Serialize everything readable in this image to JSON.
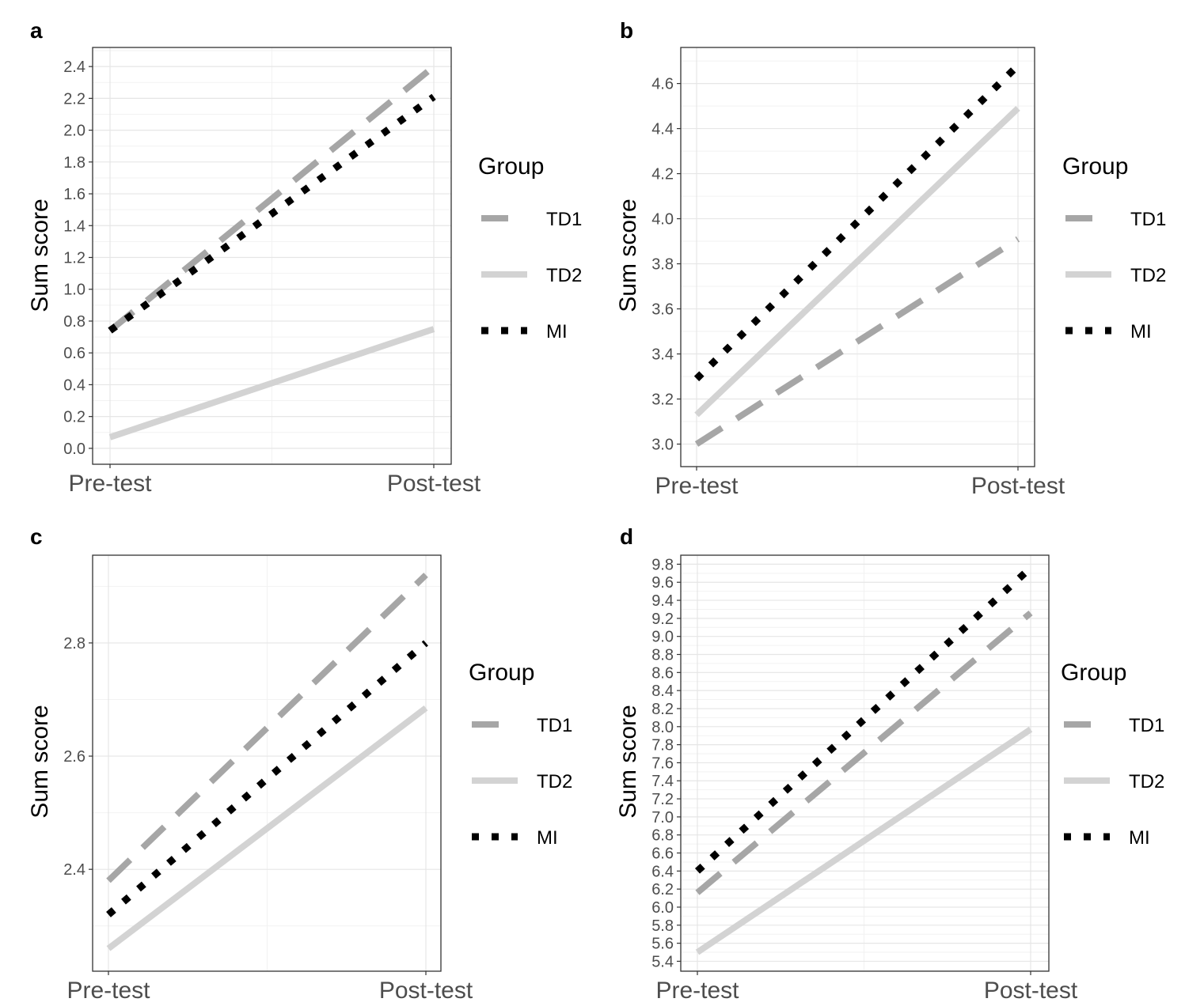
{
  "chart_data": [
    {
      "panel": "a",
      "type": "line",
      "title": "",
      "xlabel": "",
      "ylabel": "Sum score",
      "categories": [
        "Pre-test",
        "Post-test"
      ],
      "ylim": [
        -0.1,
        2.52
      ],
      "yticks": [
        0.0,
        0.2,
        0.4,
        0.6,
        0.8,
        1.0,
        1.2,
        1.4,
        1.6,
        1.8,
        2.0,
        2.2,
        2.4
      ],
      "ytick_labels": [
        "0.0",
        "0.2",
        "0.4",
        "0.6",
        "0.8",
        "1.0",
        "1.2",
        "1.4",
        "1.6",
        "1.8",
        "2.0",
        "2.2",
        "2.4"
      ],
      "grid": true,
      "legend": {
        "title": "Group",
        "position": "right"
      },
      "series": [
        {
          "name": "TD1",
          "values": [
            0.74,
            2.4
          ],
          "style": "dashed",
          "color": "#a6a6a6"
        },
        {
          "name": "TD2",
          "values": [
            0.07,
            0.75
          ],
          "style": "solid",
          "color": "#d3d3d3"
        },
        {
          "name": "MI",
          "values": [
            0.74,
            2.21
          ],
          "style": "dotted",
          "color": "#000000"
        }
      ]
    },
    {
      "panel": "b",
      "type": "line",
      "title": "",
      "xlabel": "",
      "ylabel": "Sum score",
      "categories": [
        "Pre-test",
        "Post-test"
      ],
      "ylim": [
        2.9,
        4.76
      ],
      "yticks": [
        3.0,
        3.2,
        3.4,
        3.6,
        3.8,
        4.0,
        4.2,
        4.4,
        4.6
      ],
      "ytick_labels": [
        "3.0",
        "3.2",
        "3.4",
        "3.6",
        "3.8",
        "4.0",
        "4.2",
        "4.4",
        "4.6"
      ],
      "grid": true,
      "legend": {
        "title": "Group",
        "position": "right"
      },
      "series": [
        {
          "name": "TD1",
          "values": [
            3.0,
            3.91
          ],
          "style": "dashed",
          "color": "#a6a6a6"
        },
        {
          "name": "TD2",
          "values": [
            3.13,
            4.49
          ],
          "style": "solid",
          "color": "#d3d3d3"
        },
        {
          "name": "MI",
          "values": [
            3.29,
            4.68
          ],
          "style": "dotted",
          "color": "#000000"
        }
      ]
    },
    {
      "panel": "c",
      "type": "line",
      "title": "",
      "xlabel": "",
      "ylabel": "Sum score",
      "categories": [
        "Pre-test",
        "Post-test"
      ],
      "ylim": [
        2.22,
        2.955
      ],
      "yticks": [
        2.4,
        2.6,
        2.8
      ],
      "ytick_labels": [
        "2.4",
        "2.6",
        "2.8"
      ],
      "grid": true,
      "legend": {
        "title": "Group",
        "position": "right"
      },
      "series": [
        {
          "name": "TD1",
          "values": [
            2.38,
            2.92
          ],
          "style": "dashed",
          "color": "#a6a6a6"
        },
        {
          "name": "TD2",
          "values": [
            2.26,
            2.685
          ],
          "style": "solid",
          "color": "#d3d3d3"
        },
        {
          "name": "MI",
          "values": [
            2.32,
            2.8
          ],
          "style": "dotted",
          "color": "#000000"
        }
      ]
    },
    {
      "panel": "d",
      "type": "line",
      "title": "",
      "xlabel": "",
      "ylabel": "Sum score",
      "categories": [
        "Pre-test",
        "Post-test"
      ],
      "ylim": [
        5.29,
        9.9
      ],
      "yticks": [
        5.4,
        5.6,
        5.8,
        6.0,
        6.2,
        6.4,
        6.6,
        6.8,
        7.0,
        7.2,
        7.4,
        7.6,
        7.8,
        8.0,
        8.2,
        8.4,
        8.6,
        8.8,
        9.0,
        9.2,
        9.4,
        9.6,
        9.8
      ],
      "ytick_labels": [
        "5.4",
        "5.6",
        "5.8",
        "6.0",
        "6.2",
        "6.4",
        "6.6",
        "6.8",
        "7.0",
        "7.2",
        "7.4",
        "7.6",
        "7.8",
        "8.0",
        "8.2",
        "8.4",
        "8.6",
        "8.8",
        "9.0",
        "9.2",
        "9.4",
        "9.6",
        "9.8"
      ],
      "grid": true,
      "legend": {
        "title": "Group",
        "position": "right"
      },
      "series": [
        {
          "name": "TD1",
          "values": [
            6.16,
            9.26
          ],
          "style": "dashed",
          "color": "#a6a6a6"
        },
        {
          "name": "TD2",
          "values": [
            5.5,
            7.97
          ],
          "style": "solid",
          "color": "#d3d3d3"
        },
        {
          "name": "MI",
          "values": [
            6.4,
            9.76
          ],
          "style": "dotted",
          "color": "#000000"
        }
      ]
    }
  ]
}
